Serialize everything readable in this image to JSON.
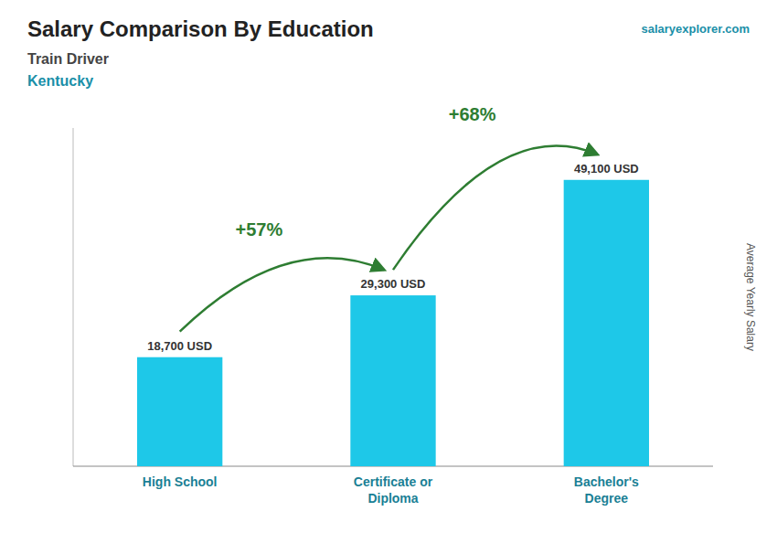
{
  "chart_data": {
    "type": "bar",
    "title": "Salary Comparison By Education",
    "subtitle": [
      "Train Driver",
      "Kentucky"
    ],
    "source": "salaryexplorer.com",
    "ylabel": "Average Yearly Salary",
    "categories": [
      "High School",
      "Certificate or\nDiploma",
      "Bachelor's\nDegree"
    ],
    "values": [
      18700,
      29300,
      49100
    ],
    "value_labels": [
      "18,700 USD",
      "29,300 USD",
      "49,100 USD"
    ],
    "data_labels": true,
    "annotations": [
      "+57%",
      "+68%"
    ],
    "color": "#1EC8E8",
    "ylim": [
      0,
      58000
    ],
    "tick_labels": "x"
  }
}
